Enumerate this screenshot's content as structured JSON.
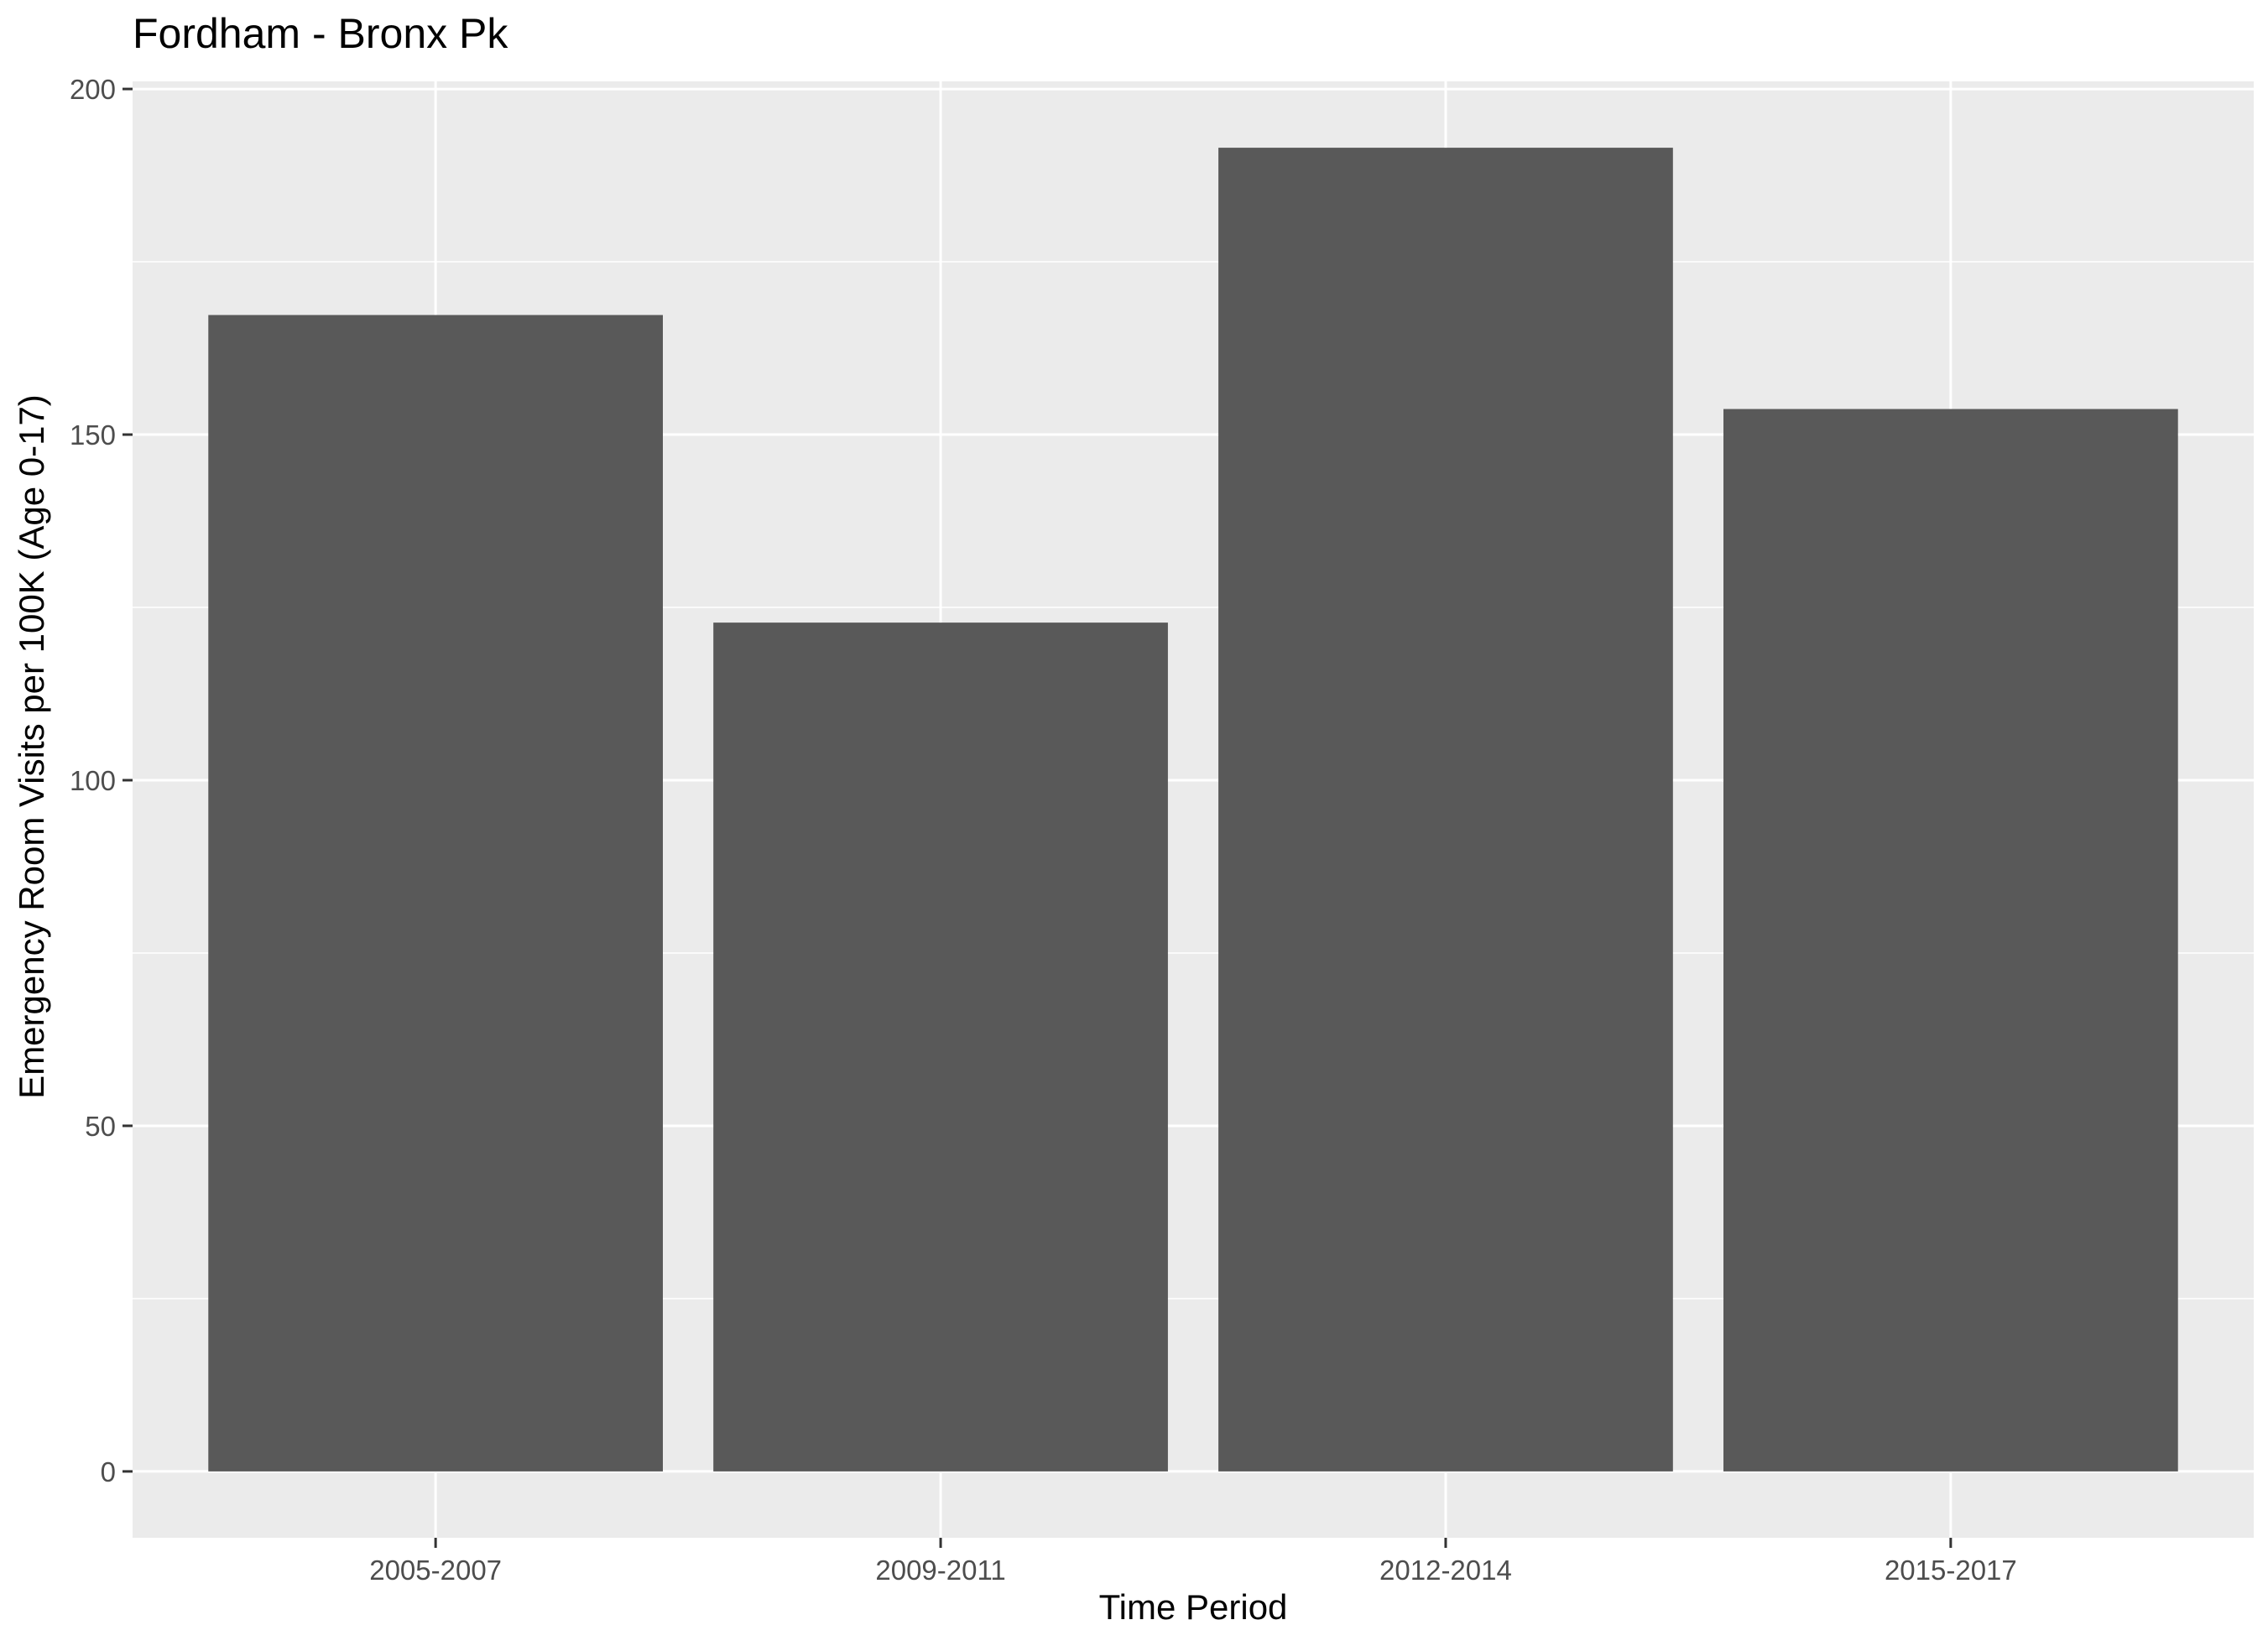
{
  "chart_data": {
    "type": "bar",
    "title": "Fordham - Bronx Pk",
    "xlabel": "Time Period",
    "ylabel": "Emergency Room Visits per 100K (Age 0-17)",
    "categories": [
      "2005-2007",
      "2009-2011",
      "2012-2014",
      "2015-2017"
    ],
    "values": [
      167.3,
      122.8,
      191.5,
      153.7
    ],
    "ylim": [
      -9.6,
      201.1
    ],
    "yticks": [
      0,
      50,
      100,
      150,
      200
    ],
    "grid": true,
    "legend": "none",
    "colors": {
      "panel_background": "#ebebeb",
      "grid": "#ffffff",
      "bar_fill": "#595959",
      "tick_mark": "#333333",
      "tick_label": "#4d4d4d"
    }
  }
}
